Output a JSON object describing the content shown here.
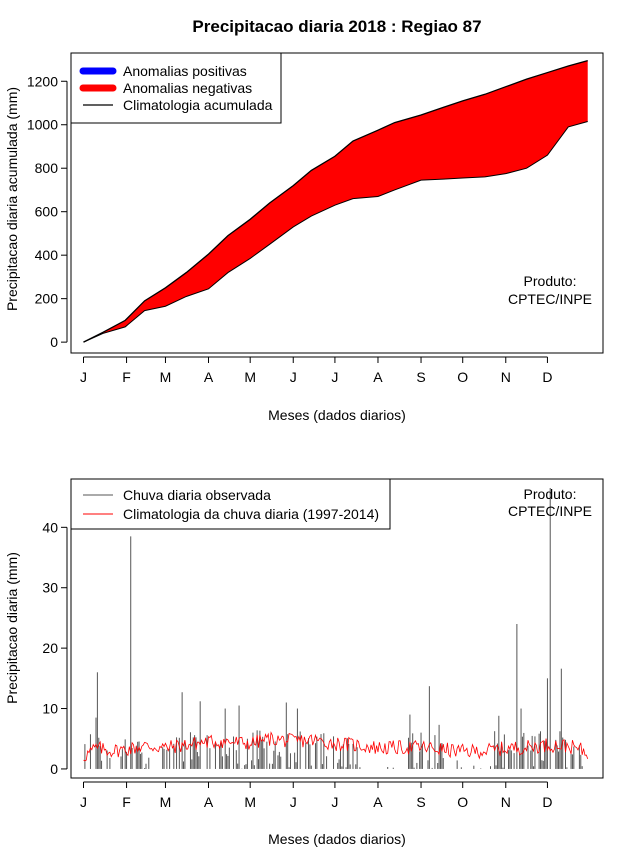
{
  "title": "Precipitacao diaria 2018 : Regiao 87",
  "month_labels": [
    "J",
    "F",
    "M",
    "A",
    "M",
    "J",
    "J",
    "A",
    "S",
    "O",
    "N",
    "D"
  ],
  "chart_data": [
    {
      "type": "area",
      "id": "top",
      "ylabel": "Precipitacao diaria acumulada (mm)",
      "xlabel": "Meses (dados diarios)",
      "ylim": [
        -50,
        1330
      ],
      "yticks": [
        0,
        200,
        400,
        600,
        800,
        1000,
        1200
      ],
      "xlim": [
        -8,
        375
      ],
      "month_days": [
        1,
        32,
        60,
        91,
        121,
        152,
        182,
        213,
        244,
        274,
        305,
        335
      ],
      "legend": [
        {
          "label": "Anomalias positivas",
          "color": "#0000ff",
          "style": "thick"
        },
        {
          "label": "Anomalias negativas",
          "color": "#ff0000",
          "style": "thick"
        },
        {
          "label": "Climatologia acumulada",
          "color": "#000000",
          "style": "line"
        }
      ],
      "annotation": [
        "Produto:",
        "CPTEC/INPE"
      ],
      "days": [
        1,
        15,
        31,
        45,
        60,
        75,
        91,
        105,
        121,
        135,
        152,
        165,
        182,
        195,
        213,
        225,
        244,
        260,
        274,
        290,
        305,
        320,
        335,
        350,
        364
      ],
      "climatology_cumulative": [
        0,
        45,
        100,
        190,
        250,
        320,
        405,
        490,
        565,
        640,
        720,
        790,
        855,
        925,
        975,
        1010,
        1045,
        1080,
        1110,
        1140,
        1175,
        1210,
        1240,
        1270,
        1295
      ],
      "observed_cumulative": [
        0,
        40,
        70,
        145,
        165,
        210,
        245,
        320,
        385,
        450,
        530,
        580,
        630,
        660,
        670,
        700,
        745,
        750,
        755,
        760,
        775,
        800,
        860,
        990,
        1015
      ]
    },
    {
      "type": "bar",
      "id": "bottom",
      "ylabel": "Precipitacao diaria (mm)",
      "xlabel": "Meses (dados diarios)",
      "ylim": [
        -1.5,
        48
      ],
      "yticks": [
        0,
        10,
        20,
        30,
        40
      ],
      "xlim": [
        -8,
        375
      ],
      "month_days": [
        1,
        32,
        60,
        91,
        121,
        152,
        182,
        213,
        244,
        274,
        305,
        335
      ],
      "legend": [
        {
          "label": "Chuva diaria observada",
          "color": "#555555",
          "style": "line"
        },
        {
          "label": "Climatologia da chuva diaria (1997-2014)",
          "color": "#ff0000",
          "style": "line"
        }
      ],
      "annotation": [
        "Produto:",
        "CPTEC/INPE"
      ],
      "observed_rain_peaks": [
        {
          "day": 10,
          "mm": 8.5
        },
        {
          "day": 11,
          "mm": 16.0
        },
        {
          "day": 35,
          "mm": 38.5
        },
        {
          "day": 72,
          "mm": 12.7
        },
        {
          "day": 85,
          "mm": 11.2
        },
        {
          "day": 103,
          "mm": 10.0
        },
        {
          "day": 113,
          "mm": 10.5
        },
        {
          "day": 147,
          "mm": 11.0
        },
        {
          "day": 155,
          "mm": 10.0
        },
        {
          "day": 236,
          "mm": 9.0
        },
        {
          "day": 250,
          "mm": 13.7
        },
        {
          "day": 257,
          "mm": 7.3
        },
        {
          "day": 300,
          "mm": 8.8
        },
        {
          "day": 313,
          "mm": 24.0
        },
        {
          "day": 316,
          "mm": 10.0
        },
        {
          "day": 335,
          "mm": 15.0
        },
        {
          "day": 337,
          "mm": 46.5
        },
        {
          "day": 345,
          "mm": 16.6
        }
      ],
      "climatology_daily": {
        "days": [
          1,
          10,
          20,
          31,
          45,
          60,
          75,
          91,
          105,
          121,
          135,
          152,
          165,
          182,
          195,
          213,
          225,
          244,
          260,
          274,
          290,
          305,
          320,
          335,
          350,
          364
        ],
        "mm": [
          2.0,
          3.5,
          3.0,
          3.2,
          3.8,
          3.5,
          4.0,
          4.5,
          4.5,
          4.2,
          5.0,
          4.6,
          4.8,
          4.2,
          4.0,
          3.5,
          3.5,
          3.6,
          3.2,
          2.9,
          3.0,
          3.4,
          3.6,
          4.0,
          3.8,
          2.8
        ]
      }
    }
  ]
}
